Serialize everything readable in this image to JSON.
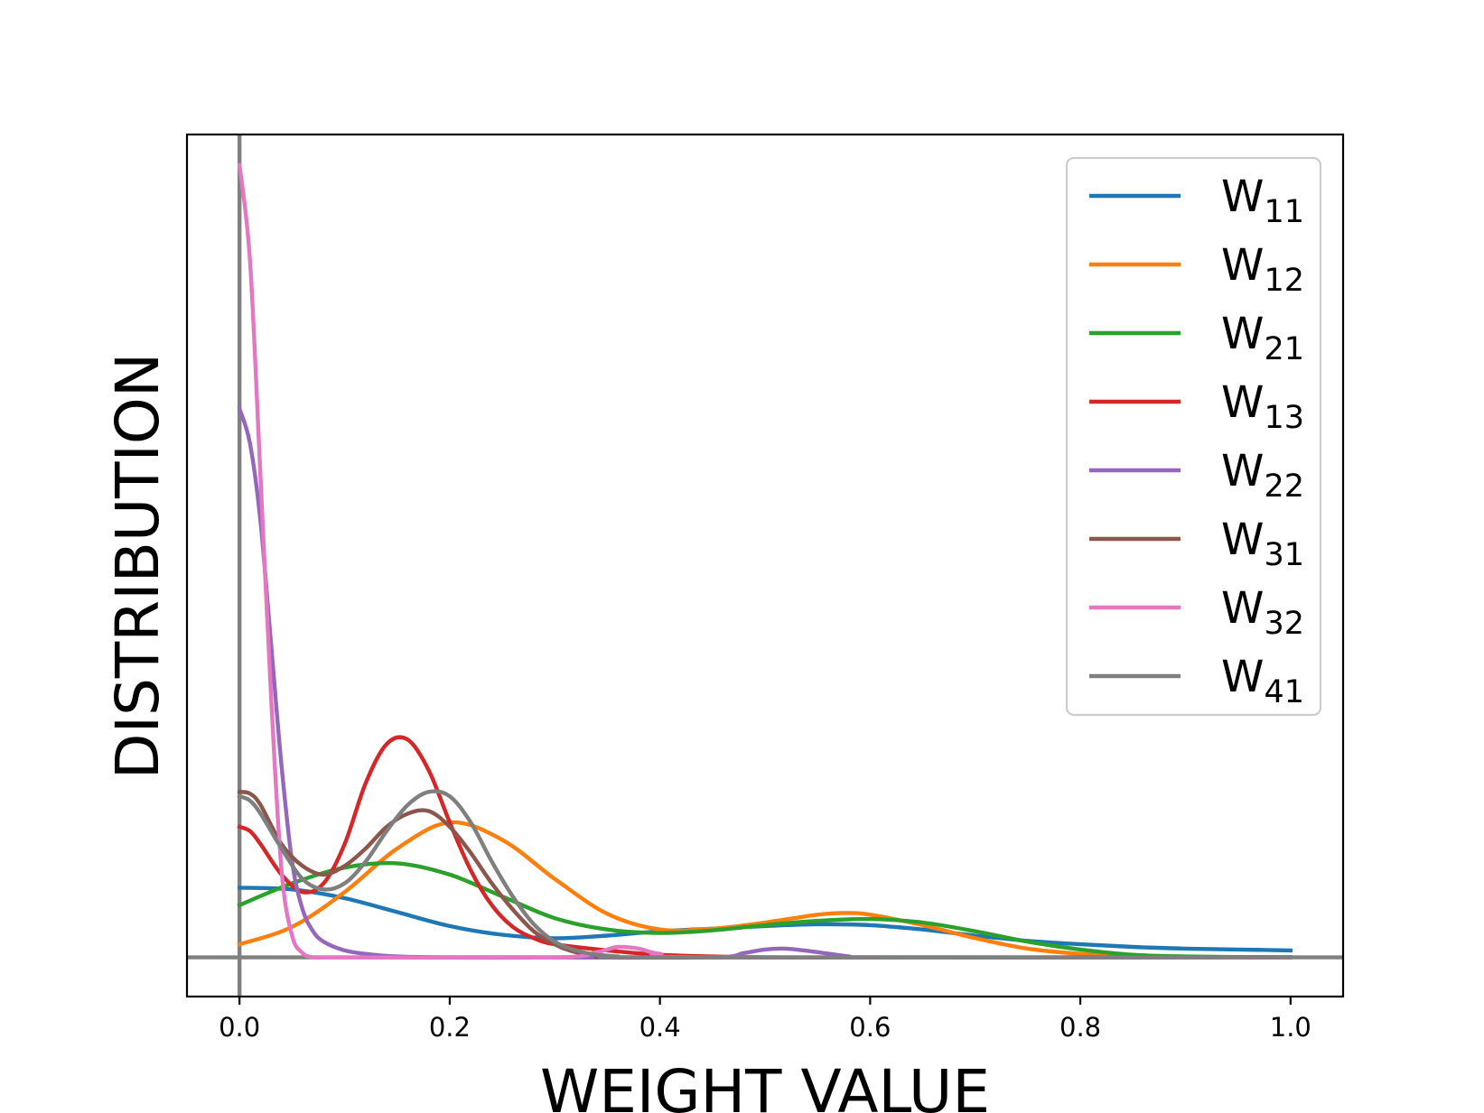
{
  "chart_data": {
    "type": "line",
    "title": "",
    "xlabel": "WEIGHT VALUE",
    "ylabel": "DISTRIBUTION",
    "xlim": [
      -0.05,
      1.05
    ],
    "ylim": [
      -0.045,
      0.945
    ],
    "grid": false,
    "legend_position": "top-right",
    "x_ticks": [
      0.0,
      0.2,
      0.4,
      0.6,
      0.8,
      1.0
    ],
    "x_tick_labels": [
      "0.0",
      "0.2",
      "0.4",
      "0.6",
      "0.8",
      "1.0"
    ],
    "reference_lines": [
      {
        "orientation": "vertical",
        "value": 0.0,
        "color": "#808080"
      },
      {
        "orientation": "horizontal",
        "value": 0.0,
        "color": "#808080"
      }
    ],
    "series": [
      {
        "name": "W11",
        "base": "W",
        "sub": "11",
        "color": "#1f77b4",
        "x": [
          0.0,
          0.05,
          0.1,
          0.15,
          0.2,
          0.25,
          0.3,
          0.35,
          0.4,
          0.45,
          0.5,
          0.55,
          0.6,
          0.65,
          0.7,
          0.75,
          0.8,
          0.85,
          0.9,
          0.95,
          1.0
        ],
        "y": [
          0.08,
          0.078,
          0.068,
          0.052,
          0.036,
          0.026,
          0.022,
          0.025,
          0.03,
          0.033,
          0.036,
          0.038,
          0.037,
          0.032,
          0.025,
          0.019,
          0.015,
          0.012,
          0.01,
          0.009,
          0.008
        ]
      },
      {
        "name": "W12",
        "base": "W",
        "sub": "12",
        "color": "#ff7f0e",
        "x": [
          0.0,
          0.05,
          0.1,
          0.15,
          0.2,
          0.25,
          0.3,
          0.35,
          0.4,
          0.45,
          0.5,
          0.55,
          0.575,
          0.6,
          0.65,
          0.7,
          0.75,
          0.8,
          0.85,
          0.9,
          1.0
        ],
        "y": [
          0.015,
          0.035,
          0.075,
          0.125,
          0.155,
          0.135,
          0.09,
          0.05,
          0.032,
          0.033,
          0.04,
          0.049,
          0.051,
          0.049,
          0.037,
          0.022,
          0.01,
          0.004,
          0.001,
          0.0,
          0.0
        ]
      },
      {
        "name": "W21",
        "base": "W",
        "sub": "21",
        "color": "#2ca02c",
        "x": [
          0.0,
          0.05,
          0.1,
          0.15,
          0.2,
          0.25,
          0.3,
          0.35,
          0.4,
          0.45,
          0.5,
          0.55,
          0.6,
          0.65,
          0.7,
          0.75,
          0.8,
          0.85,
          0.9,
          1.0
        ],
        "y": [
          0.06,
          0.085,
          0.103,
          0.108,
          0.095,
          0.07,
          0.045,
          0.032,
          0.028,
          0.031,
          0.037,
          0.042,
          0.044,
          0.04,
          0.03,
          0.018,
          0.009,
          0.003,
          0.001,
          0.0
        ]
      },
      {
        "name": "W13",
        "base": "W",
        "sub": "13",
        "color": "#d62728",
        "x": [
          0.0,
          0.01,
          0.02,
          0.04,
          0.06,
          0.08,
          0.1,
          0.12,
          0.14,
          0.16,
          0.18,
          0.2,
          0.22,
          0.24,
          0.26,
          0.28,
          0.3,
          0.35,
          0.4,
          0.45,
          0.5,
          0.6,
          1.0
        ],
        "y": [
          0.15,
          0.145,
          0.13,
          0.095,
          0.075,
          0.085,
          0.13,
          0.2,
          0.245,
          0.25,
          0.215,
          0.155,
          0.1,
          0.06,
          0.035,
          0.022,
          0.015,
          0.008,
          0.003,
          0.001,
          0.0,
          0.0,
          0.0
        ]
      },
      {
        "name": "W22",
        "base": "W",
        "sub": "22",
        "color": "#9467bd",
        "x": [
          0.0,
          0.01,
          0.02,
          0.03,
          0.04,
          0.05,
          0.06,
          0.07,
          0.08,
          0.1,
          0.12,
          0.15,
          0.2,
          0.3,
          0.45,
          0.48,
          0.5,
          0.52,
          0.55,
          0.58,
          0.6,
          1.0
        ],
        "y": [
          0.63,
          0.59,
          0.5,
          0.36,
          0.22,
          0.11,
          0.055,
          0.03,
          0.018,
          0.008,
          0.004,
          0.001,
          0.0,
          0.0,
          0.0,
          0.005,
          0.009,
          0.01,
          0.006,
          0.001,
          0.0,
          0.0
        ]
      },
      {
        "name": "W31",
        "base": "W",
        "sub": "31",
        "color": "#8c564b",
        "x": [
          0.0,
          0.01,
          0.02,
          0.04,
          0.06,
          0.08,
          0.1,
          0.12,
          0.14,
          0.16,
          0.18,
          0.2,
          0.22,
          0.24,
          0.26,
          0.28,
          0.3,
          0.32,
          0.35,
          0.4,
          1.0
        ],
        "y": [
          0.19,
          0.188,
          0.175,
          0.13,
          0.105,
          0.095,
          0.105,
          0.125,
          0.15,
          0.165,
          0.168,
          0.15,
          0.12,
          0.085,
          0.055,
          0.03,
          0.015,
          0.006,
          0.002,
          0.0,
          0.0
        ]
      },
      {
        "name": "W32",
        "base": "W",
        "sub": "32",
        "color": "#e377c2",
        "x": [
          0.0,
          0.01,
          0.02,
          0.03,
          0.04,
          0.05,
          0.06,
          0.07,
          0.08,
          0.1,
          0.3,
          0.34,
          0.36,
          0.38,
          0.4,
          0.45,
          1.0
        ],
        "y": [
          0.91,
          0.8,
          0.55,
          0.3,
          0.1,
          0.025,
          0.005,
          0.0,
          0.0,
          0.0,
          0.0,
          0.006,
          0.012,
          0.01,
          0.004,
          0.0,
          0.0
        ]
      },
      {
        "name": "W41",
        "base": "W",
        "sub": "41",
        "color": "#7f7f7f",
        "x": [
          0.0,
          0.01,
          0.02,
          0.04,
          0.06,
          0.08,
          0.1,
          0.12,
          0.14,
          0.16,
          0.18,
          0.2,
          0.22,
          0.24,
          0.26,
          0.28,
          0.3,
          0.32,
          0.34,
          0.36,
          0.4,
          1.0
        ],
        "y": [
          0.185,
          0.18,
          0.165,
          0.125,
          0.09,
          0.078,
          0.085,
          0.11,
          0.145,
          0.175,
          0.19,
          0.185,
          0.155,
          0.11,
          0.07,
          0.038,
          0.018,
          0.008,
          0.003,
          0.001,
          0.0,
          0.0
        ]
      }
    ]
  }
}
